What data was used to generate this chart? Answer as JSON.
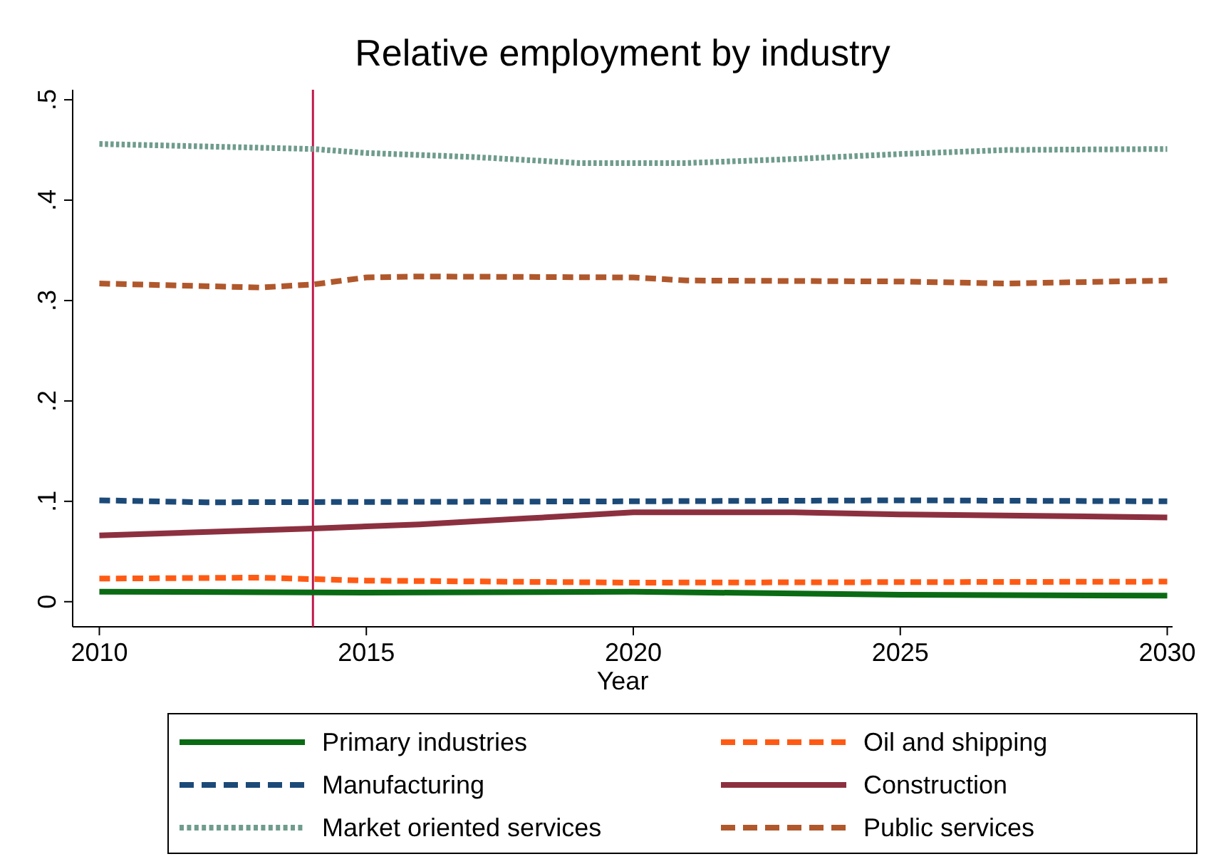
{
  "chart_data": {
    "type": "line",
    "title": "Relative employment by industry",
    "xlabel": "Year",
    "xlim": [
      2009.5,
      2030.1
    ],
    "xticks": [
      2010,
      2015,
      2020,
      2025,
      2030
    ],
    "ylim": [
      -0.025,
      0.51
    ],
    "yticks": [
      {
        "value": 0,
        "label": "0"
      },
      {
        "value": 0.1,
        "label": ".1"
      },
      {
        "value": 0.2,
        "label": ".2"
      },
      {
        "value": 0.3,
        "label": ".3"
      },
      {
        "value": 0.4,
        "label": ".4"
      },
      {
        "value": 0.5,
        "label": ".5"
      }
    ],
    "legend": "bottom",
    "grid": false,
    "ref_lines": [
      {
        "axis": "x",
        "value": 2014,
        "color": "#c0184a"
      }
    ],
    "series": [
      {
        "name": "Primary industries",
        "color": "#0a6b14",
        "line_style": "solid",
        "x": [
          2010,
          2015,
          2020,
          2025,
          2030
        ],
        "values": [
          0.01,
          0.009,
          0.01,
          0.007,
          0.006
        ]
      },
      {
        "name": "Oil and shipping",
        "color": "#ff5a14",
        "line_style": "dashed",
        "x": [
          2010,
          2013,
          2015,
          2020,
          2030
        ],
        "values": [
          0.023,
          0.024,
          0.021,
          0.019,
          0.02
        ]
      },
      {
        "name": "Manufacturing",
        "color": "#1c4a78",
        "line_style": "dashed",
        "x": [
          2010,
          2012,
          2020,
          2025,
          2030
        ],
        "values": [
          0.101,
          0.099,
          0.1,
          0.101,
          0.1
        ]
      },
      {
        "name": "Construction",
        "color": "#8c3040",
        "line_style": "solid",
        "x": [
          2010,
          2014,
          2016,
          2018,
          2020,
          2023,
          2025,
          2030
        ],
        "values": [
          0.066,
          0.073,
          0.077,
          0.083,
          0.089,
          0.089,
          0.087,
          0.084
        ]
      },
      {
        "name": "Market oriented services",
        "color": "#6f9c8c",
        "line_style": "dotted",
        "x": [
          2010,
          2014,
          2015,
          2017,
          2019,
          2021,
          2023,
          2025,
          2027,
          2030
        ],
        "values": [
          0.456,
          0.451,
          0.447,
          0.443,
          0.437,
          0.437,
          0.441,
          0.446,
          0.45,
          0.451
        ]
      },
      {
        "name": "Public services",
        "color": "#b0582c",
        "line_style": "dashed",
        "x": [
          2010,
          2013,
          2014,
          2015,
          2016,
          2020,
          2021,
          2025,
          2027,
          2030
        ],
        "values": [
          0.317,
          0.313,
          0.316,
          0.323,
          0.324,
          0.323,
          0.32,
          0.319,
          0.317,
          0.32
        ]
      }
    ]
  }
}
